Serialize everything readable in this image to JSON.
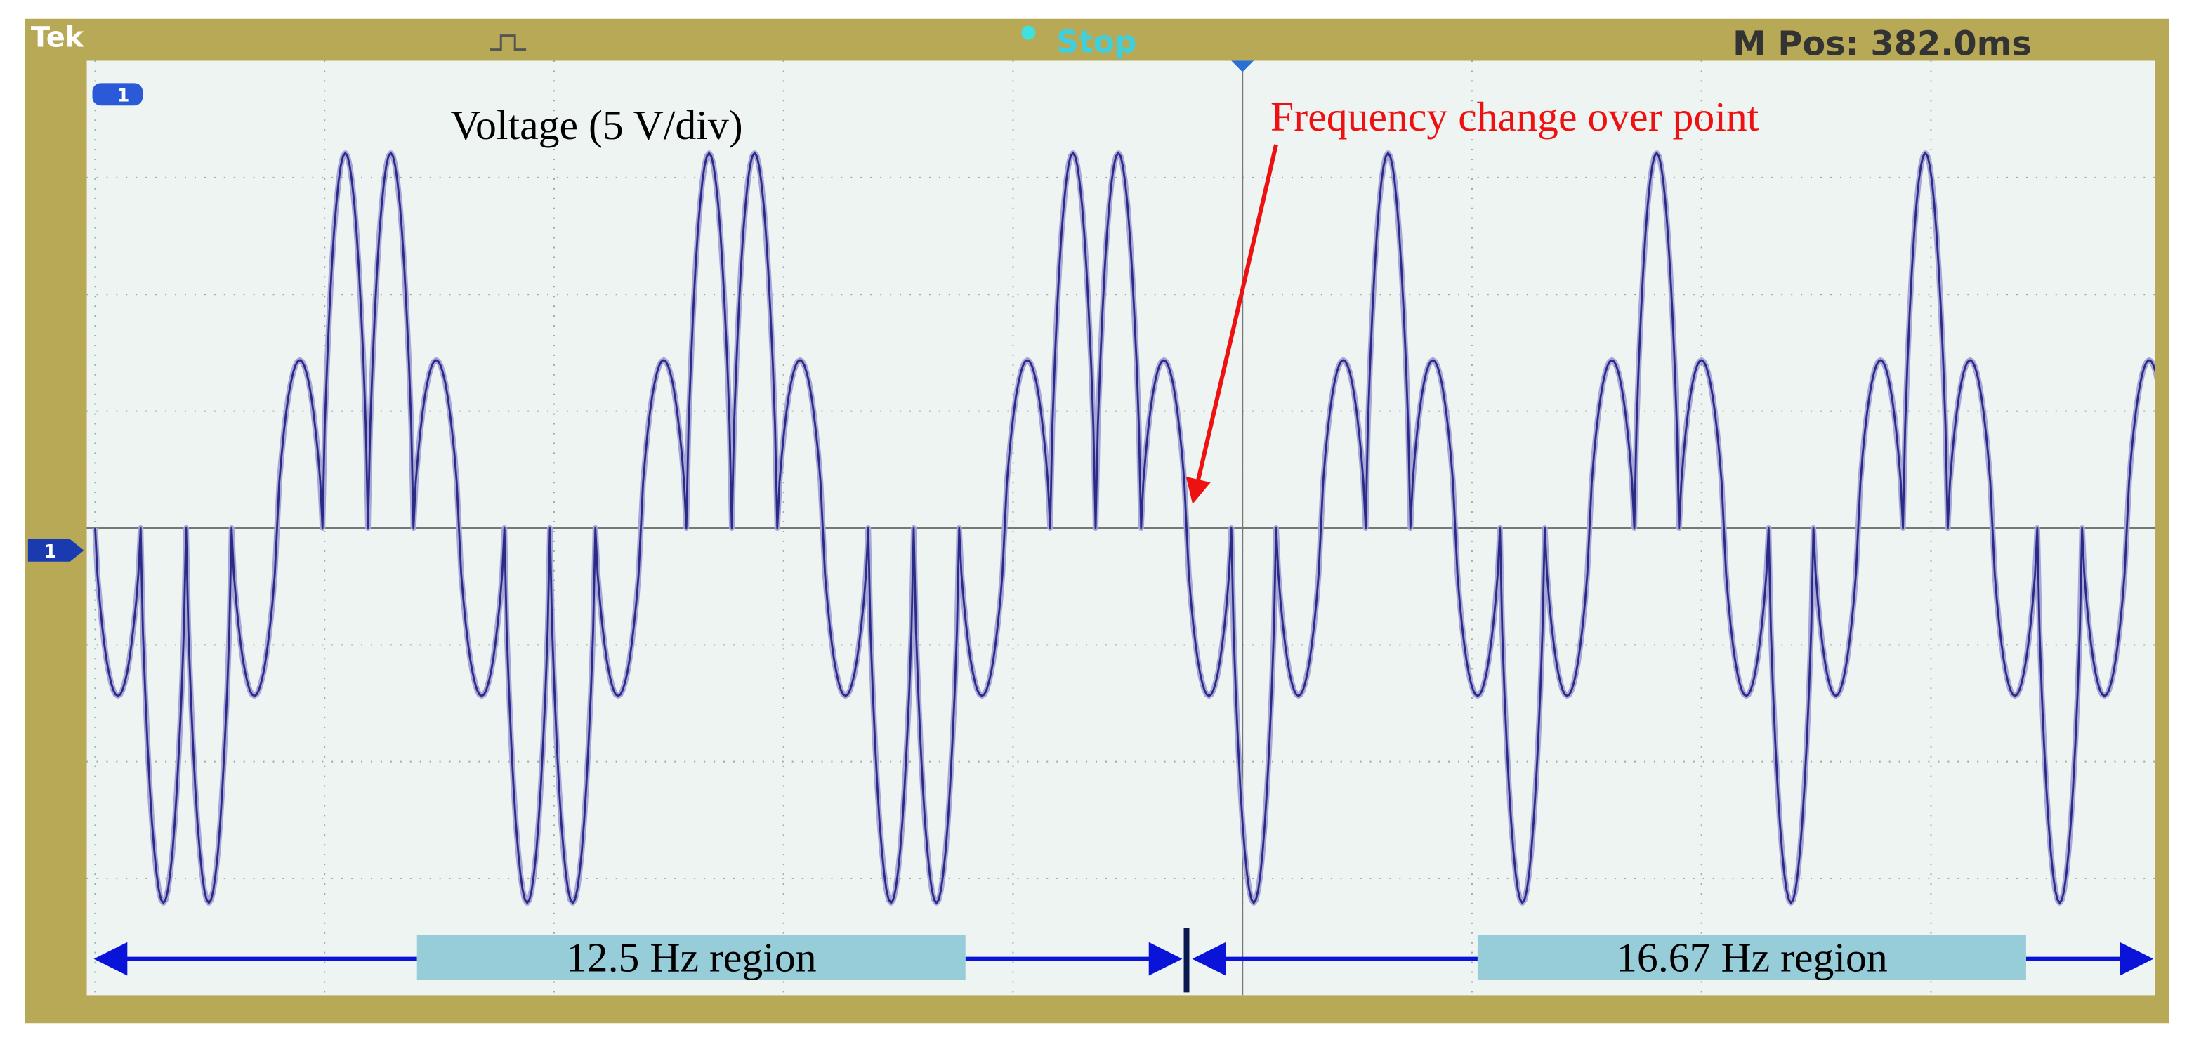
{
  "header": {
    "brand": "Tek",
    "status": "Stop",
    "position": "M Pos: 382.0ms"
  },
  "channel_markers": [
    "1",
    "1"
  ],
  "labels": {
    "axis": "Voltage (5 V/div)",
    "annotation": "Frequency change over point",
    "region_left": "12.5 Hz region",
    "region_right": "16.67 Hz region"
  }
}
